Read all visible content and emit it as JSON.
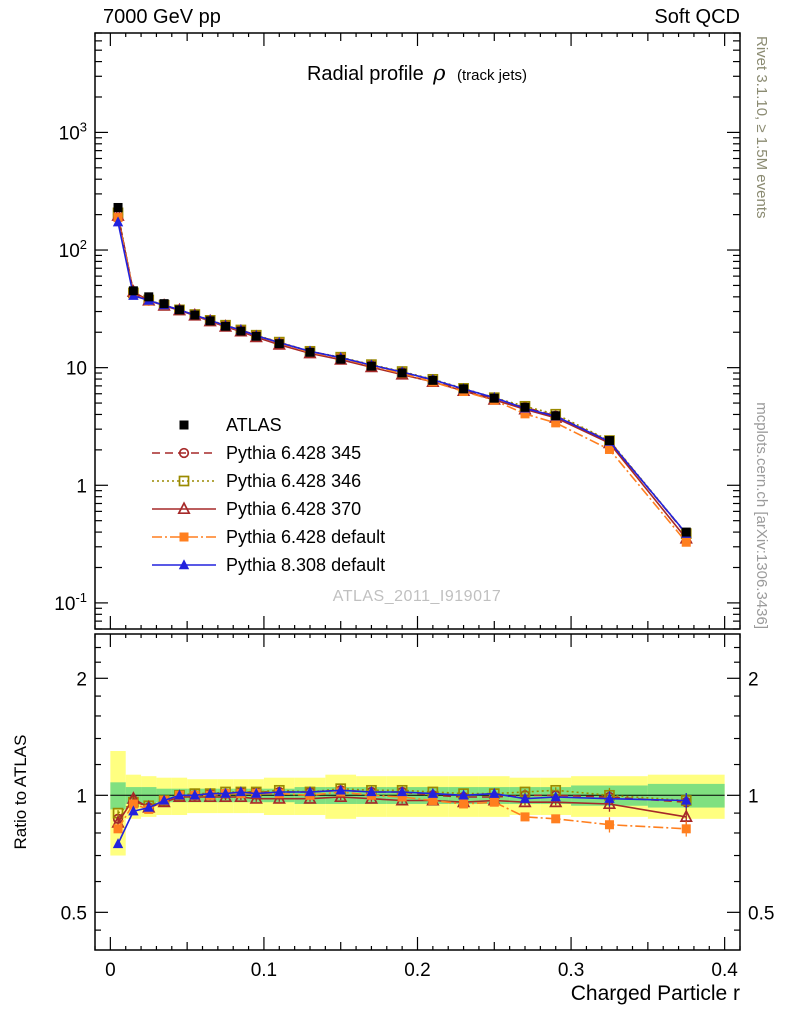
{
  "header": {
    "left": "7000 GeV pp",
    "right": "Soft QCD"
  },
  "side_texts": {
    "right_top": "Rivet 3.1.10, ≥ 1.5M events",
    "right_bottom": "mcplots.cern.ch [arXiv:1306.3436]"
  },
  "watermark": "ATLAS_2011_I919017",
  "chart_data": {
    "type": "line",
    "title": "Radial profile ρ (track jets)",
    "title_parts": {
      "main": "Radial profile",
      "rho": "ρ",
      "suffix": "(track jets)"
    },
    "xlabel": "Charged Particle r",
    "ratio_ylabel": "Ratio to ATLAS",
    "main_yscale": "log",
    "ratio_yscale": "log",
    "grid": false,
    "legend_position": "inside-left",
    "xlim": [
      -0.01,
      0.41
    ],
    "main_ylim": [
      0.06,
      7000
    ],
    "ratio_ylim": [
      0.4,
      2.6
    ],
    "xticks": {
      "values": [
        0,
        0.1,
        0.2,
        0.3,
        0.4
      ],
      "labels": [
        "0",
        "0.1",
        "0.2",
        "0.3",
        "0.4"
      ]
    },
    "main_yticks": [
      {
        "v": 0.1,
        "label": "10^-1"
      },
      {
        "v": 1,
        "label": "1"
      },
      {
        "v": 10,
        "label": "10"
      },
      {
        "v": 100,
        "label": "10^2"
      },
      {
        "v": 1000,
        "label": "10^3"
      }
    ],
    "ratio_yticks": {
      "values": [
        0.5,
        1,
        2
      ],
      "labels": [
        "0.5",
        "1",
        "2"
      ]
    },
    "x": [
      0.005,
      0.015,
      0.025,
      0.035,
      0.045,
      0.055,
      0.065,
      0.075,
      0.085,
      0.095,
      0.11,
      0.13,
      0.15,
      0.17,
      0.19,
      0.21,
      0.23,
      0.25,
      0.27,
      0.29,
      0.325,
      0.375
    ],
    "bin_edges": [
      0,
      0.01,
      0.02,
      0.03,
      0.04,
      0.05,
      0.06,
      0.07,
      0.08,
      0.09,
      0.1,
      0.12,
      0.14,
      0.16,
      0.18,
      0.2,
      0.22,
      0.24,
      0.26,
      0.28,
      0.3,
      0.35,
      0.4
    ],
    "series": [
      {
        "name": "ATLAS",
        "color": "#000000",
        "marker": "square-filled",
        "line": "none",
        "values": [
          230,
          45,
          40,
          35,
          31,
          28,
          25,
          22.5,
          20.5,
          18.5,
          16,
          13.5,
          11.8,
          10.3,
          9.0,
          7.8,
          6.6,
          5.5,
          4.6,
          3.9,
          2.4,
          0.4
        ]
      },
      {
        "name": "Pythia 6.428 345",
        "color": "#a62929",
        "marker": "circle-open",
        "line": "dashed",
        "ratio": [
          0.87,
          0.97,
          0.93,
          0.97,
          1.0,
          1.0,
          1.01,
          1.01,
          1.02,
          1.02,
          1.02,
          1.02,
          1.03,
          1.02,
          1.02,
          1.0,
          0.99,
          0.99,
          1.0,
          1.0,
          0.99,
          0.96
        ]
      },
      {
        "name": "Pythia 6.428 346",
        "color": "#9a8a00",
        "marker": "square-open",
        "line": "dotted",
        "ratio": [
          0.9,
          0.96,
          0.94,
          0.97,
          1.0,
          1.01,
          1.01,
          1.02,
          1.02,
          1.02,
          1.03,
          1.02,
          1.04,
          1.03,
          1.03,
          1.02,
          1.01,
          1.01,
          1.02,
          1.03,
          1.0,
          0.97
        ]
      },
      {
        "name": "Pythia 6.428 370",
        "color": "#a62929",
        "marker": "triangle-open",
        "line": "solid",
        "ratio": [
          0.85,
          0.98,
          0.93,
          0.96,
          0.99,
          0.99,
          0.99,
          0.99,
          0.99,
          0.98,
          0.98,
          0.98,
          0.99,
          0.98,
          0.97,
          0.97,
          0.96,
          0.97,
          0.96,
          0.96,
          0.95,
          0.88
        ]
      },
      {
        "name": "Pythia 6.428 default",
        "color": "#ff7f1f",
        "marker": "square-filled",
        "line": "dashdot",
        "ratio": [
          0.82,
          0.95,
          0.92,
          0.97,
          1.0,
          1.0,
          1.0,
          1.01,
          1.01,
          1.01,
          1.01,
          1.0,
          1.02,
          1.0,
          0.99,
          0.97,
          0.95,
          0.96,
          0.88,
          0.87,
          0.84,
          0.82
        ]
      },
      {
        "name": "Pythia 8.308 default",
        "color": "#2222dd",
        "marker": "triangle-filled",
        "line": "solid",
        "ratio": [
          0.75,
          0.91,
          0.93,
          0.97,
          1.0,
          1.0,
          1.01,
          1.01,
          1.02,
          1.01,
          1.02,
          1.02,
          1.03,
          1.02,
          1.02,
          1.01,
          1.0,
          1.01,
          0.98,
          0.99,
          0.98,
          0.97
        ]
      }
    ],
    "bands": {
      "yellow_color": "#ffff80",
      "green_color": "#80e080",
      "yellow": [
        0.3,
        0.13,
        0.12,
        0.11,
        0.11,
        0.1,
        0.1,
        0.1,
        0.1,
        0.1,
        0.11,
        0.11,
        0.13,
        0.12,
        0.12,
        0.12,
        0.12,
        0.12,
        0.11,
        0.11,
        0.12,
        0.13
      ],
      "green": [
        0.08,
        0.05,
        0.05,
        0.04,
        0.04,
        0.04,
        0.04,
        0.04,
        0.04,
        0.04,
        0.04,
        0.05,
        0.05,
        0.05,
        0.05,
        0.05,
        0.05,
        0.05,
        0.05,
        0.05,
        0.06,
        0.07
      ]
    }
  }
}
